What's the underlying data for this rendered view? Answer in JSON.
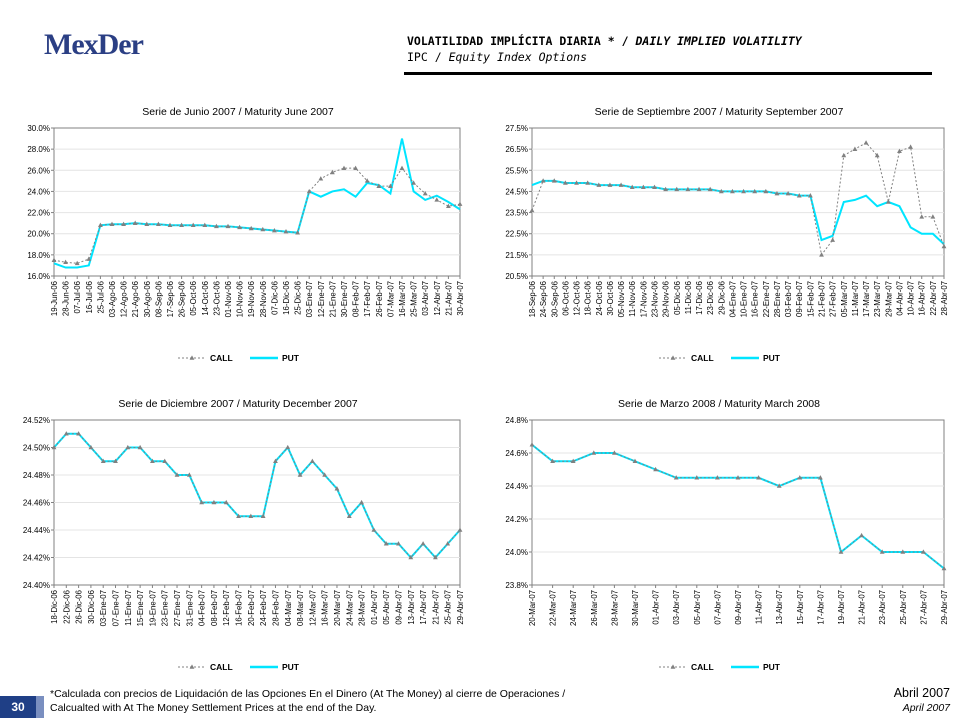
{
  "header": {
    "logo_text": "MexDer",
    "title_es": "VOLATILIDAD IMPLÍCITA DIARIA *",
    "title_sep": " / ",
    "title_en": "DAILY IMPLIED VOLATILITY",
    "subtitle_es": "IPC",
    "subtitle_sep": " / ",
    "subtitle_en": "Equity Index Options"
  },
  "footer": {
    "footnote_line1": "*Calculada con precios de Liquidación de las Opciones En el Dinero (At The Money) al cierre de Operaciones /",
    "footnote_line2": "Calcualted with At The Money Settlement Prices at the end of the Day.",
    "page_number": "30",
    "date_es": "Abril 2007",
    "date_en": "April 2007"
  },
  "colors": {
    "call": "#808080",
    "put": "#00e5ff",
    "brand": "#2b3f84"
  },
  "chart_data": [
    {
      "type": "line",
      "title": "Serie de Junio 2007 / Maturity June 2007",
      "ylim": [
        0.16,
        0.3
      ],
      "yticks": [
        "16.0%",
        "18.0%",
        "20.0%",
        "22.0%",
        "24.0%",
        "26.0%",
        "28.0%",
        "30.0%"
      ],
      "ytick_values": [
        0.16,
        0.18,
        0.2,
        0.22,
        0.24,
        0.26,
        0.28,
        0.3
      ],
      "xticks": [
        "19-Jun-06",
        "28-Jun-06",
        "07-Jul-06",
        "16-Jul-06",
        "25-Jul-06",
        "03-Ago-06",
        "12-Ago-06",
        "21-Ago-06",
        "30-Ago-06",
        "08-Sep-06",
        "17-Sep-06",
        "26-Sep-06",
        "05-Oct-06",
        "14-Oct-06",
        "23-Oct-06",
        "01-Nov-06",
        "10-Nov-06",
        "19-Nov-06",
        "28-Nov-06",
        "07-Dic-06",
        "16-Dic-06",
        "25-Dic-06",
        "03-Ene-07",
        "12-Ene-07",
        "21-Ene-07",
        "30-Ene-07",
        "08-Feb-07",
        "17-Feb-07",
        "26-Feb-07",
        "07-Mar-07",
        "16-Mar-07",
        "25-Mar-07",
        "03-Abr-07",
        "12-Abr-07",
        "21-Abr-07",
        "30-Abr-07"
      ],
      "legend": [
        "CALL",
        "PUT"
      ],
      "series": [
        {
          "name": "CALL",
          "values": [
            0.175,
            0.173,
            0.172,
            0.176,
            0.208,
            0.209,
            0.209,
            0.21,
            0.209,
            0.209,
            0.208,
            0.208,
            0.208,
            0.208,
            0.207,
            0.207,
            0.206,
            0.205,
            0.204,
            0.203,
            0.202,
            0.201,
            0.24,
            0.252,
            0.258,
            0.262,
            0.262,
            0.25,
            0.245,
            0.245,
            0.262,
            0.248,
            0.238,
            0.232,
            0.226,
            0.228
          ]
        },
        {
          "name": "PUT",
          "values": [
            0.172,
            0.168,
            0.168,
            0.17,
            0.208,
            0.209,
            0.209,
            0.21,
            0.209,
            0.209,
            0.208,
            0.208,
            0.208,
            0.208,
            0.207,
            0.207,
            0.206,
            0.205,
            0.204,
            0.203,
            0.202,
            0.201,
            0.24,
            0.235,
            0.24,
            0.242,
            0.235,
            0.248,
            0.246,
            0.238,
            0.29,
            0.24,
            0.232,
            0.236,
            0.23,
            0.223
          ]
        }
      ]
    },
    {
      "type": "line",
      "title": "Serie de Septiembre 2007 / Maturity September 2007",
      "ylim": [
        0.205,
        0.275
      ],
      "yticks": [
        "20.5%",
        "21.5%",
        "22.5%",
        "23.5%",
        "24.5%",
        "25.5%",
        "26.5%",
        "27.5%"
      ],
      "ytick_values": [
        0.205,
        0.215,
        0.225,
        0.235,
        0.245,
        0.255,
        0.265,
        0.275
      ],
      "xticks": [
        "18-Sep-06",
        "24-Sep-06",
        "30-Sep-06",
        "06-Oct-06",
        "12-Oct-06",
        "18-Oct-06",
        "24-Oct-06",
        "30-Oct-06",
        "05-Nov-06",
        "11-Nov-06",
        "17-Nov-06",
        "23-Nov-06",
        "29-Nov-06",
        "05-Dic-06",
        "11-Dic-06",
        "17-Dic-06",
        "23-Dic-06",
        "29-Dic-06",
        "04-Ene-07",
        "10-Ene-07",
        "16-Ene-07",
        "22-Ene-07",
        "28-Ene-07",
        "03-Feb-07",
        "09-Feb-07",
        "15-Feb-07",
        "21-Feb-07",
        "27-Feb-07",
        "05-Mar-07",
        "11-Mar-07",
        "17-Mar-07",
        "23-Mar-07",
        "29-Mar-07",
        "04-Abr-07",
        "10-Abr-07",
        "16-Abr-07",
        "22-Abr-07",
        "28-Abr-07"
      ],
      "legend": [
        "CALL",
        "PUT"
      ],
      "series": [
        {
          "name": "CALL",
          "values": [
            0.236,
            0.25,
            0.25,
            0.249,
            0.249,
            0.249,
            0.248,
            0.248,
            0.248,
            0.247,
            0.247,
            0.247,
            0.246,
            0.246,
            0.246,
            0.246,
            0.246,
            0.245,
            0.245,
            0.245,
            0.245,
            0.245,
            0.244,
            0.244,
            0.243,
            0.243,
            0.215,
            0.222,
            0.262,
            0.265,
            0.268,
            0.262,
            0.24,
            0.264,
            0.266,
            0.233,
            0.233,
            0.219
          ]
        },
        {
          "name": "PUT",
          "values": [
            0.248,
            0.25,
            0.25,
            0.249,
            0.249,
            0.249,
            0.248,
            0.248,
            0.248,
            0.247,
            0.247,
            0.247,
            0.246,
            0.246,
            0.246,
            0.246,
            0.246,
            0.245,
            0.245,
            0.245,
            0.245,
            0.245,
            0.244,
            0.244,
            0.243,
            0.243,
            0.222,
            0.224,
            0.24,
            0.241,
            0.243,
            0.238,
            0.24,
            0.238,
            0.228,
            0.225,
            0.225,
            0.22
          ]
        }
      ]
    },
    {
      "type": "line",
      "title": "Serie de Diciembre 2007 / Maturity December 2007",
      "ylim": [
        0.244,
        0.2452
      ],
      "yticks": [
        "24.40%",
        "24.42%",
        "24.44%",
        "24.46%",
        "24.48%",
        "24.50%",
        "24.52%"
      ],
      "ytick_values": [
        0.244,
        0.2442,
        0.2444,
        0.2446,
        0.2448,
        0.245,
        0.2452
      ],
      "xticks": [
        "18-Dic-06",
        "22-Dic-06",
        "26-Dic-06",
        "30-Dic-06",
        "03-Ene-07",
        "07-Ene-07",
        "11-Ene-07",
        "15-Ene-07",
        "19-Ene-07",
        "23-Ene-07",
        "27-Ene-07",
        "31-Ene-07",
        "04-Feb-07",
        "08-Feb-07",
        "12-Feb-07",
        "16-Feb-07",
        "20-Feb-07",
        "24-Feb-07",
        "28-Feb-07",
        "04-Mar-07",
        "08-Mar-07",
        "12-Mar-07",
        "16-Mar-07",
        "20-Mar-07",
        "24-Mar-07",
        "28-Mar-07",
        "01-Abr-07",
        "05-Abr-07",
        "09-Abr-07",
        "13-Abr-07",
        "17-Abr-07",
        "21-Abr-07",
        "25-Abr-07",
        "29-Abr-07"
      ],
      "legend": [
        "CALL",
        "PUT"
      ],
      "series": [
        {
          "name": "CALL",
          "values": [
            0.245,
            0.2451,
            0.2451,
            0.245,
            0.2449,
            0.2449,
            0.245,
            0.245,
            0.2449,
            0.2449,
            0.2448,
            0.2448,
            0.2446,
            0.2446,
            0.2446,
            0.2445,
            0.2445,
            0.2445,
            0.2449,
            0.245,
            0.2448,
            0.2449,
            0.2448,
            0.2447,
            0.2445,
            0.2446,
            0.2444,
            0.2443,
            0.2443,
            0.2442,
            0.2443,
            0.2442,
            0.2443,
            0.2444
          ]
        },
        {
          "name": "PUT",
          "values": [
            0.245,
            0.2451,
            0.2451,
            0.245,
            0.2449,
            0.2449,
            0.245,
            0.245,
            0.2449,
            0.2449,
            0.2448,
            0.2448,
            0.2446,
            0.2446,
            0.2446,
            0.2445,
            0.2445,
            0.2445,
            0.2449,
            0.245,
            0.2448,
            0.2449,
            0.2448,
            0.2447,
            0.2445,
            0.2446,
            0.2444,
            0.2443,
            0.2443,
            0.2442,
            0.2443,
            0.2442,
            0.2443,
            0.2444
          ]
        }
      ]
    },
    {
      "type": "line",
      "title": "Serie de Marzo 2008 / Maturity March 2008",
      "ylim": [
        0.238,
        0.248
      ],
      "yticks": [
        "23.8%",
        "24.0%",
        "24.2%",
        "24.4%",
        "24.6%",
        "24.8%"
      ],
      "ytick_values": [
        0.238,
        0.24,
        0.242,
        0.244,
        0.246,
        0.248
      ],
      "xticks": [
        "20-Mar-07",
        "22-Mar-07",
        "24-Mar-07",
        "26-Mar-07",
        "28-Mar-07",
        "30-Mar-07",
        "01-Abr-07",
        "03-Abr-07",
        "05-Abr-07",
        "07-Abr-07",
        "09-Abr-07",
        "11-Abr-07",
        "13-Abr-07",
        "15-Abr-07",
        "17-Abr-07",
        "19-Abr-07",
        "21-Abr-07",
        "23-Abr-07",
        "25-Abr-07",
        "27-Abr-07",
        "29-Abr-07"
      ],
      "legend": [
        "CALL",
        "PUT"
      ],
      "series": [
        {
          "name": "CALL",
          "values": [
            0.2465,
            0.2455,
            0.2455,
            0.246,
            0.246,
            0.2455,
            0.245,
            0.2445,
            0.2445,
            0.2445,
            0.2445,
            0.2445,
            0.244,
            0.2445,
            0.2445,
            0.24,
            0.241,
            0.24,
            0.24,
            0.24,
            0.239
          ]
        },
        {
          "name": "PUT",
          "values": [
            0.2465,
            0.2455,
            0.2455,
            0.246,
            0.246,
            0.2455,
            0.245,
            0.2445,
            0.2445,
            0.2445,
            0.2445,
            0.2445,
            0.244,
            0.2445,
            0.2445,
            0.24,
            0.241,
            0.24,
            0.24,
            0.24,
            0.239
          ]
        }
      ]
    }
  ]
}
